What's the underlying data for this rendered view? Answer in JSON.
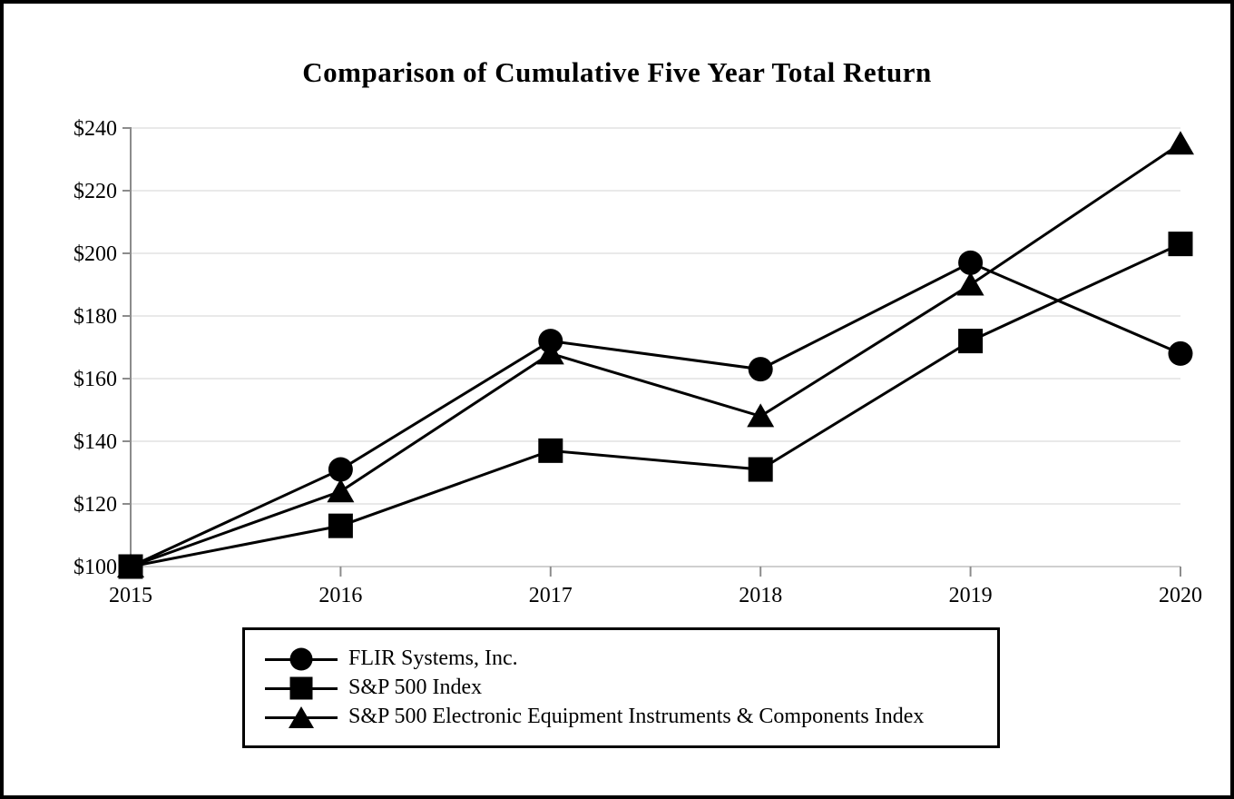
{
  "title": "Comparison of Cumulative Five Year Total Return",
  "chart_data": {
    "type": "line",
    "x": [
      2015,
      2016,
      2017,
      2018,
      2019,
      2020
    ],
    "xtick_labels": [
      "2015",
      "2016",
      "2017",
      "2018",
      "2019",
      "2020"
    ],
    "series": [
      {
        "name": "FLIR Systems, Inc.",
        "marker": "circle",
        "values": [
          100,
          131,
          172,
          163,
          197,
          168
        ]
      },
      {
        "name": "S&P 500 Index",
        "marker": "square",
        "values": [
          100,
          113,
          137,
          131,
          172,
          203
        ]
      },
      {
        "name": "S&P 500 Electronic Equipment Instruments & Components Index",
        "marker": "triangle",
        "values": [
          100,
          124,
          168,
          148,
          190,
          235
        ]
      }
    ],
    "ylim": [
      100,
      240
    ],
    "ytick_step": 20,
    "ytick_values": [
      100,
      120,
      140,
      160,
      180,
      200,
      220,
      240
    ],
    "ytick_labels": [
      "$100",
      "$120",
      "$140",
      "$160",
      "$180",
      "$200",
      "$220",
      "$240"
    ],
    "grid": true,
    "legend_position": "bottom",
    "colors": {
      "series": "#000000",
      "gridline": "#e9e9e9",
      "baseline": "#cfcfcf",
      "axis": "#8c8c8c",
      "text": "#000000"
    }
  }
}
